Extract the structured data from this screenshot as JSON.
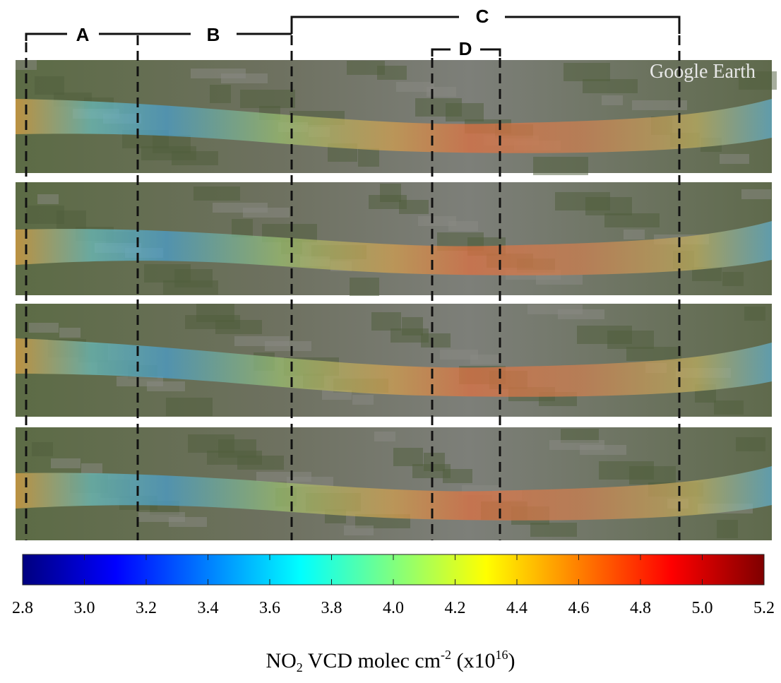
{
  "sections": [
    {
      "label": "A"
    },
    {
      "label": "B"
    },
    {
      "label": "C"
    },
    {
      "label": "D"
    }
  ],
  "watermark": "Google Earth",
  "colorbar": {
    "range": [
      2.8,
      5.2
    ],
    "ticks": [
      2.8,
      {
        "value": 3.0,
        "label": "3.0"
      },
      3.2,
      3.4,
      3.6,
      3.8,
      {
        "value": 4.0,
        "label": "4.0"
      },
      4.2,
      4.4,
      4.6,
      4.8,
      {
        "value": 5.0,
        "label": "5.0"
      },
      5.2
    ],
    "label": {
      "base": "NO",
      "sub": "2",
      "middle": " VCD molec cm",
      "sup1": "-2",
      "open": " (x10",
      "sup2": "16",
      "close": ")"
    }
  }
}
